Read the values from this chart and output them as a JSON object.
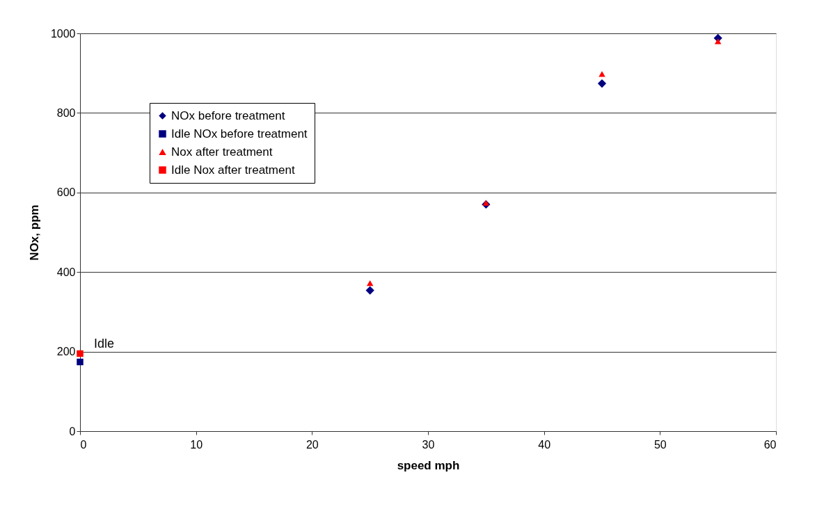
{
  "chart_data": {
    "type": "scatter",
    "xlabel": "speed mph",
    "ylabel": "NOx, ppm",
    "xlim": [
      0,
      60
    ],
    "xticks": [
      0,
      10,
      20,
      30,
      40,
      50,
      60
    ],
    "ylim": [
      0,
      1000
    ],
    "yticks": [
      0,
      200,
      400,
      600,
      800,
      1000
    ],
    "grid": "y",
    "legend": "top left",
    "series": [
      {
        "name": "NOx before treatment",
        "color": "#000080",
        "marker": "diamond",
        "x": [
          25,
          35,
          45,
          55
        ],
        "values": [
          354,
          570,
          874,
          988
        ]
      },
      {
        "name": "Idle NOx before treatment",
        "color": "#000080",
        "marker": "square",
        "x": [
          0
        ],
        "values": [
          174
        ]
      },
      {
        "name": "Nox after treatment",
        "color": "#ff0000",
        "marker": "triangle",
        "x": [
          25,
          35,
          45,
          55
        ],
        "values": [
          372,
          574,
          898,
          980
        ]
      },
      {
        "name": "Idle Nox after treatment",
        "color": "#ff0000",
        "marker": "square",
        "x": [
          0
        ],
        "values": [
          195
        ]
      }
    ],
    "annotations": [
      {
        "text": "Idle",
        "x": 0,
        "y": 195
      }
    ]
  }
}
